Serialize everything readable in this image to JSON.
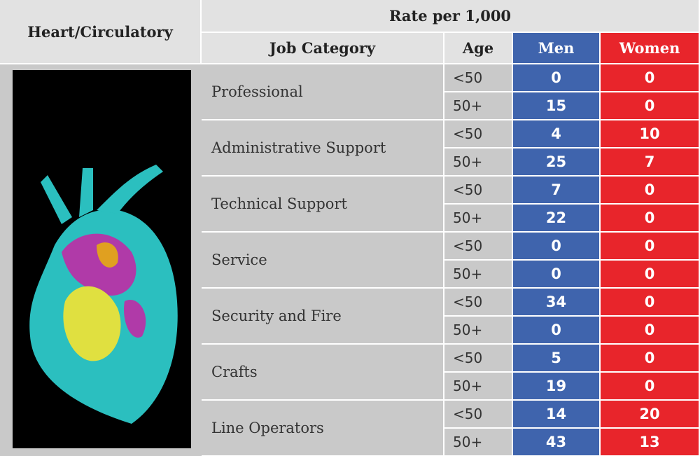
{
  "header": {
    "title": "Heart/Circulatory",
    "rate_label": "Rate per 1,000",
    "columns": [
      "Job Category",
      "Age",
      "Men",
      "Women"
    ]
  },
  "table": {
    "rows": [
      {
        "category": "Professional",
        "ages": [
          {
            "age": "<50",
            "men": 0,
            "women": 0
          },
          {
            "age": "50+",
            "men": 15,
            "women": 0
          }
        ]
      },
      {
        "category": "Administrative Support",
        "ages": [
          {
            "age": "<50",
            "men": 4,
            "women": 10
          },
          {
            "age": "50+",
            "men": 25,
            "women": 7
          }
        ]
      },
      {
        "category": "Technical Support",
        "ages": [
          {
            "age": "<50",
            "men": 7,
            "women": 0
          },
          {
            "age": "50+",
            "men": 22,
            "women": 0
          }
        ]
      },
      {
        "category": "Service",
        "ages": [
          {
            "age": "<50",
            "men": 0,
            "women": 0
          },
          {
            "age": "50+",
            "men": 0,
            "women": 0
          }
        ]
      },
      {
        "category": "Security and Fire",
        "ages": [
          {
            "age": "<50",
            "men": 34,
            "women": 0
          },
          {
            "age": "50+",
            "men": 0,
            "women": 0
          }
        ]
      },
      {
        "category": "Crafts",
        "ages": [
          {
            "age": "<50",
            "men": 5,
            "women": 0
          },
          {
            "age": "50+",
            "men": 19,
            "women": 0
          }
        ]
      },
      {
        "category": "Line Operators",
        "ages": [
          {
            "age": "<50",
            "men": 14,
            "women": 20
          },
          {
            "age": "50+",
            "men": 43,
            "women": 13
          }
        ]
      }
    ]
  }
}
